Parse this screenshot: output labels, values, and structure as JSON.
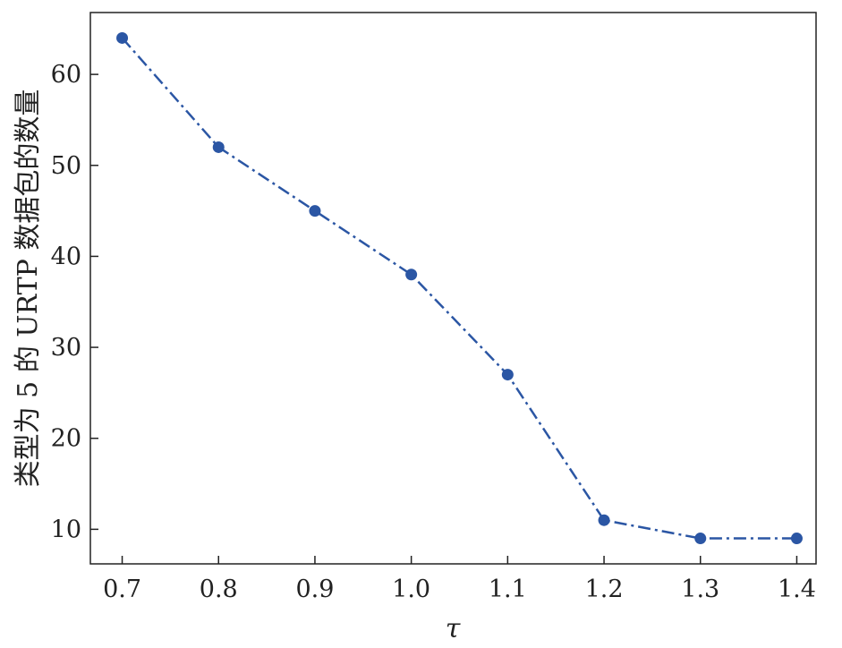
{
  "chart_data": {
    "type": "line",
    "title": "",
    "xlabel": "τ",
    "ylabel": "类型为 5 的 URTP 数据包的数量",
    "x": [
      0.7,
      0.8,
      0.9,
      1.0,
      1.1,
      1.2,
      1.3,
      1.4
    ],
    "x_tick_labels": [
      "0.7",
      "0.8",
      "0.9",
      "1.0",
      "1.1",
      "1.2",
      "1.3",
      "1.4"
    ],
    "y_ticks": [
      10,
      20,
      30,
      40,
      50,
      60
    ],
    "y_tick_labels": [
      "10",
      "20",
      "30",
      "40",
      "50",
      "60"
    ],
    "xlim": [
      0.667,
      1.42
    ],
    "ylim": [
      6.2,
      66.8
    ],
    "grid": false,
    "line_style": "dash-dot",
    "marker": "circle",
    "series": [
      {
        "values": [
          64,
          52,
          45,
          38,
          27,
          11,
          9,
          9
        ],
        "color": "#2b56a4"
      }
    ]
  }
}
